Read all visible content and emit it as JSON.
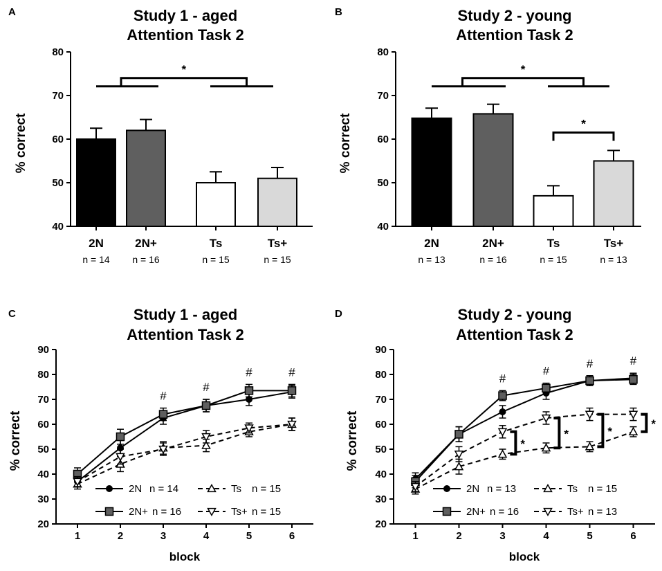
{
  "chart_data": [
    {
      "panel": "A",
      "type": "bar",
      "title": [
        "Study 1 - aged",
        "Attention Task 2"
      ],
      "ylabel": "% correct",
      "ylim": [
        40,
        80
      ],
      "yticks": [
        40,
        50,
        60,
        70,
        80
      ],
      "categories": [
        "2N",
        "2N+",
        "Ts",
        "Ts+"
      ],
      "n_labels": [
        "n = 14",
        "n = 16",
        "n = 15",
        "n = 15"
      ],
      "values": [
        60,
        62,
        50,
        51
      ],
      "errors": [
        2.5,
        2.5,
        2.5,
        2.5
      ],
      "colors": [
        "#000000",
        "#5f5f5f",
        "#ffffff",
        "#d9d9d9"
      ],
      "significance": [
        {
          "type": "group",
          "left": [
            0,
            1
          ],
          "right": [
            2,
            3
          ],
          "y": 74,
          "label": "*"
        }
      ]
    },
    {
      "panel": "B",
      "type": "bar",
      "title": [
        "Study 2 - young",
        "Attention Task 2"
      ],
      "ylabel": "% correct",
      "ylim": [
        40,
        80
      ],
      "yticks": [
        40,
        50,
        60,
        70,
        80
      ],
      "categories": [
        "2N",
        "2N+",
        "Ts",
        "Ts+"
      ],
      "n_labels": [
        "n = 13",
        "n = 16",
        "n = 15",
        "n = 13"
      ],
      "values": [
        64.8,
        65.8,
        47,
        55
      ],
      "errors": [
        2.3,
        2.2,
        2.3,
        2.4
      ],
      "colors": [
        "#000000",
        "#5f5f5f",
        "#ffffff",
        "#d9d9d9"
      ],
      "significance": [
        {
          "type": "group",
          "left": [
            0,
            1
          ],
          "right": [
            2,
            3
          ],
          "y": 74,
          "label": "*"
        },
        {
          "type": "pair",
          "a": 2,
          "b": 3,
          "y": 61.5,
          "label": "*"
        }
      ]
    },
    {
      "panel": "C",
      "type": "line",
      "title": [
        "Study 1 - aged",
        "Attention Task 2"
      ],
      "ylabel": "% correct",
      "xlabel": "block",
      "x": [
        1,
        2,
        3,
        4,
        5,
        6
      ],
      "xlim": [
        0.5,
        6.5
      ],
      "ylim": [
        20,
        90
      ],
      "yticks": [
        20,
        30,
        40,
        50,
        60,
        70,
        80,
        90
      ],
      "series": [
        {
          "name": "2N",
          "n": "n = 14",
          "marker": "circle",
          "dash": false,
          "values": [
            37,
            50.5,
            62.5,
            67.5,
            70,
            73
          ],
          "errors": [
            2,
            3,
            2.5,
            2.5,
            2.5,
            2.5
          ]
        },
        {
          "name": "2N+",
          "n": "n = 16",
          "marker": "square",
          "dash": false,
          "values": [
            40,
            55,
            64,
            67.5,
            73.5,
            73.5
          ],
          "errors": [
            2.5,
            3,
            2.5,
            2.5,
            2.5,
            2.5
          ]
        },
        {
          "name": "Ts",
          "n": "n = 15",
          "marker": "triangle-up",
          "dash": true,
          "values": [
            36,
            44,
            50.5,
            51.5,
            57,
            60
          ],
          "errors": [
            2,
            3,
            2.5,
            2.5,
            2,
            2.5
          ]
        },
        {
          "name": "Ts+",
          "n": "n = 15",
          "marker": "triangle-down",
          "dash": true,
          "values": [
            37,
            47,
            50,
            55,
            58.5,
            60
          ],
          "errors": [
            2,
            3,
            2.5,
            2.5,
            2,
            2.5
          ]
        }
      ],
      "hash_marks": [
        {
          "x": 3,
          "label": "#"
        },
        {
          "x": 4,
          "label": "#"
        },
        {
          "x": 5,
          "label": "#"
        },
        {
          "x": 6,
          "label": "#"
        }
      ],
      "brackets": []
    },
    {
      "panel": "D",
      "type": "line",
      "title": [
        "Study 2 - young",
        "Attention Task 2"
      ],
      "ylabel": "% correct",
      "xlabel": "block",
      "x": [
        1,
        2,
        3,
        4,
        5,
        6
      ],
      "xlim": [
        0.5,
        6.5
      ],
      "ylim": [
        20,
        90
      ],
      "yticks": [
        20,
        30,
        40,
        50,
        60,
        70,
        80,
        90
      ],
      "series": [
        {
          "name": "2N",
          "n": "n = 13",
          "marker": "circle",
          "dash": false,
          "values": [
            38,
            56,
            65,
            72.5,
            77.5,
            78.5
          ],
          "errors": [
            2.5,
            3,
            2.5,
            2.5,
            2,
            2
          ]
        },
        {
          "name": "2N+",
          "n": "n = 16",
          "marker": "square",
          "dash": false,
          "values": [
            37,
            56,
            71.5,
            74.5,
            77.5,
            78
          ],
          "errors": [
            2.5,
            3,
            2,
            2,
            2,
            2
          ]
        },
        {
          "name": "Ts",
          "n": "n = 15",
          "marker": "triangle-up",
          "dash": true,
          "values": [
            34,
            43,
            48,
            50.5,
            51,
            57
          ],
          "errors": [
            2,
            3,
            2,
            2,
            2,
            2
          ]
        },
        {
          "name": "Ts+",
          "n": "n = 13",
          "marker": "triangle-down",
          "dash": true,
          "values": [
            35,
            48,
            57,
            62.5,
            64,
            64
          ],
          "errors": [
            2,
            3,
            2.5,
            2.5,
            2.5,
            2.5
          ]
        }
      ],
      "hash_marks": [
        {
          "x": 3,
          "label": "#"
        },
        {
          "x": 4,
          "label": "#"
        },
        {
          "x": 5,
          "label": "#"
        },
        {
          "x": 6,
          "label": "#"
        }
      ],
      "brackets": [
        {
          "x": 3.3,
          "low": 48,
          "high": 57,
          "label": "*"
        },
        {
          "x": 4.3,
          "low": 50.5,
          "high": 62.5,
          "label": "*"
        },
        {
          "x": 5.3,
          "low": 51,
          "high": 64,
          "label": "*"
        },
        {
          "x": 6.3,
          "low": 57,
          "high": 64,
          "label": "*"
        }
      ]
    }
  ]
}
